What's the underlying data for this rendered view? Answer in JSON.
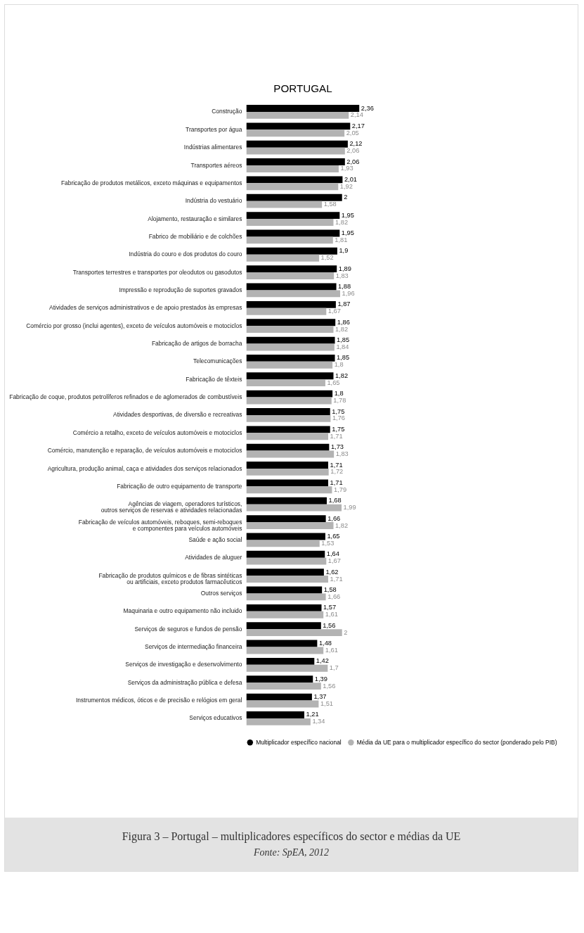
{
  "chart_data": {
    "type": "bar",
    "orientation": "horizontal",
    "title": "PORTUGAL",
    "legend": "bottom",
    "categories": [
      "Construção",
      "Transportes por água",
      "Indústrias alimentares",
      "Transportes aéreos",
      "Fabricação de produtos metálicos, exceto máquinas e equipamentos",
      "Indústria do vestuário",
      "Alojamento, restauração e similares",
      "Fabrico de mobiliário e de colchões",
      "Indústria do couro e dos produtos do couro",
      "Transportes terrestres e transportes por oleodutos ou gasodutos",
      "Impressão e reprodução de suportes gravados",
      "Atividades de serviços administrativos e de apoio prestados às empresas",
      "Comércio por grosso (inclui agentes), exceto de veículos automóveis e motociclos",
      "Fabricação de artigos de borracha",
      "Telecomunicações",
      "Fabricação de têxteis",
      "Fabricação de coque, produtos petrolíferos refinados e de aglomerados de combustíveis",
      "Atividades desportivas, de diversão e recreativas",
      "Comércio a retalho, exceto de veículos automóveis e motociclos",
      "Comércio, manutenção e reparação, de veículos automóveis e motociclos",
      "Agricultura, produção animal, caça e atividades dos serviços relacionados",
      "Fabricação de outro equipamento de transporte",
      "Agências de viagem, operadores turísticos,\noutros serviços de reservas e atividades relacionadas",
      "Fabricação de veículos automóveis, reboques, semi-reboques\ne componentes para veículos automóveis",
      "Saúde e ação social",
      "Atividades de aluguer",
      "Fabricação de produtos químicos e de fibras sintéticas\nou artificiais, exceto produtos farmacêuticos",
      "Outros serviços",
      "Maquinaria e outro equipamento não incluido",
      "Serviços de seguros e fundos de pensão",
      "Serviços de intermediação financeira",
      "Serviços de investigação e desenvolvimento",
      "Serviços da administração pública e defesa",
      "Instrumentos médicos, óticos e de precisão e relógios em geral",
      "Serviços educativos"
    ],
    "series": [
      {
        "name": "Multiplicador específico nacional",
        "color": "#000000",
        "values": [
          2.36,
          2.17,
          2.12,
          2.06,
          2.01,
          2,
          1.95,
          1.95,
          1.9,
          1.89,
          1.88,
          1.87,
          1.86,
          1.85,
          1.85,
          1.82,
          1.8,
          1.75,
          1.75,
          1.73,
          1.71,
          1.71,
          1.68,
          1.66,
          1.65,
          1.64,
          1.62,
          1.58,
          1.57,
          1.56,
          1.48,
          1.42,
          1.39,
          1.37,
          1.21
        ],
        "value_labels": [
          "2,36",
          "2,17",
          "2,12",
          "2,06",
          "2,01",
          "2",
          "1,95",
          "1,95",
          "1,9",
          "1,89",
          "1,88",
          "1,87",
          "1,86",
          "1,85",
          "1,85",
          "1,82",
          "1,8",
          "1,75",
          "1,75",
          "1,73",
          "1,71",
          "1,71",
          "1,68",
          "1,66",
          "1,65",
          "1,64",
          "1,62",
          "1,58",
          "1,57",
          "1,56",
          "1,48",
          "1,42",
          "1,39",
          "1,37",
          "1,21"
        ]
      },
      {
        "name": "Média da UE para o multiplicador específico do sector (ponderado pelo PIB)",
        "color": "#b3b3b3",
        "values": [
          2.14,
          2.05,
          2.06,
          1.93,
          1.92,
          1.58,
          1.82,
          1.81,
          1.52,
          1.83,
          1.96,
          1.67,
          1.82,
          1.84,
          1.8,
          1.65,
          1.78,
          1.76,
          1.71,
          1.83,
          1.72,
          1.79,
          1.99,
          1.82,
          1.53,
          1.67,
          1.71,
          1.66,
          1.61,
          2,
          1.61,
          1.7,
          1.56,
          1.51,
          1.34
        ],
        "value_labels": [
          "2,14",
          "2,05",
          "2,06",
          "1,93",
          "1,92",
          "1,58",
          "1,82",
          "1,81",
          "1,52",
          "1,83",
          "1,96",
          "1,67",
          "1,82",
          "1,84",
          "1,8",
          "1,65",
          "1,78",
          "1,76",
          "1,71",
          "1,83",
          "1,72",
          "1,79",
          "1,99",
          "1,82",
          "1,53",
          "1,67",
          "1,71",
          "1,66",
          "1,61",
          "2",
          "1,61",
          "1,7",
          "1,56",
          "1,51",
          "1,34"
        ]
      }
    ],
    "annotations": [
      "Figura 3 – Portugal – multiplicadores específicos do sector e médias da UE",
      "Fonte: SpEA, 2012"
    ]
  }
}
